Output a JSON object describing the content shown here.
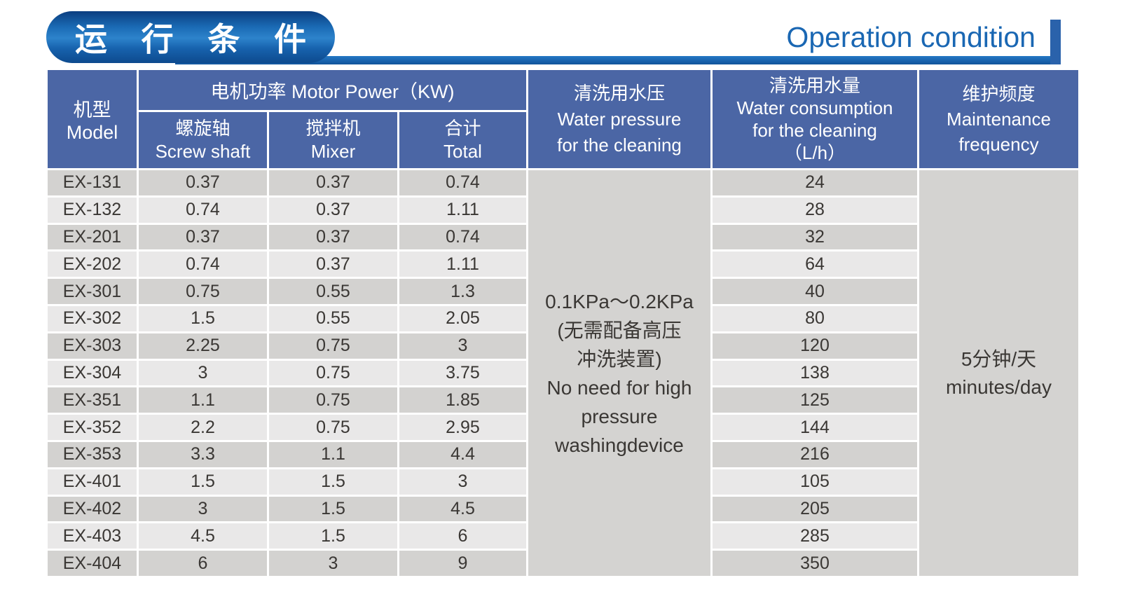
{
  "banner": {
    "title_zh": "运 行 条 件",
    "title_en": "Operation condition"
  },
  "colors": {
    "header_bg": "#4b66a5",
    "row_dark": "#d3d2d0",
    "row_light": "#e9e8e8",
    "merged_gray": "#d4d3d1",
    "accent_blue": "#1a67b3",
    "badge_blue_light": "#2d83cb",
    "badge_blue_dark": "#0b3e80",
    "body_text": "#3a3734"
  },
  "table": {
    "headers": {
      "model": "机型\nModel",
      "motor_power": "电机功率  Motor Power（KW)",
      "screw_shaft": "螺旋轴\nScrew shaft",
      "mixer": "搅拌机\nMixer",
      "total": "合计\nTotal",
      "water_pressure": "清洗用水压\nWater pressure\nfor the cleaning",
      "water_consumption": "清洗用水量\nWater consumption\nfor the cleaning\n（L/h）",
      "maintenance": "维护频度\nMaintenance\nfrequency"
    },
    "water_pressure_note": "0.1KPa～0.2KPa\n(无需配备高压\n冲洗装置)\nNo need for high\npressure\nwashingdevice",
    "maintenance_note": "5分钟/天\nminutes/day",
    "rows": [
      {
        "model": "EX-131",
        "screw": "0.37",
        "mixer": "0.37",
        "total": "0.74",
        "consumption": "24"
      },
      {
        "model": "EX-132",
        "screw": "0.74",
        "mixer": "0.37",
        "total": "1.11",
        "consumption": "28"
      },
      {
        "model": "EX-201",
        "screw": "0.37",
        "mixer": "0.37",
        "total": "0.74",
        "consumption": "32"
      },
      {
        "model": "EX-202",
        "screw": "0.74",
        "mixer": "0.37",
        "total": "1.11",
        "consumption": "64"
      },
      {
        "model": "EX-301",
        "screw": "0.75",
        "mixer": "0.55",
        "total": "1.3",
        "consumption": "40"
      },
      {
        "model": "EX-302",
        "screw": "1.5",
        "mixer": "0.55",
        "total": "2.05",
        "consumption": "80"
      },
      {
        "model": "EX-303",
        "screw": "2.25",
        "mixer": "0.75",
        "total": "3",
        "consumption": "120"
      },
      {
        "model": "EX-304",
        "screw": "3",
        "mixer": "0.75",
        "total": "3.75",
        "consumption": "138"
      },
      {
        "model": "EX-351",
        "screw": "1.1",
        "mixer": "0.75",
        "total": "1.85",
        "consumption": "125"
      },
      {
        "model": "EX-352",
        "screw": "2.2",
        "mixer": "0.75",
        "total": "2.95",
        "consumption": "144"
      },
      {
        "model": "EX-353",
        "screw": "3.3",
        "mixer": "1.1",
        "total": "4.4",
        "consumption": "216"
      },
      {
        "model": "EX-401",
        "screw": "1.5",
        "mixer": "1.5",
        "total": "3",
        "consumption": "105"
      },
      {
        "model": "EX-402",
        "screw": "3",
        "mixer": "1.5",
        "total": "4.5",
        "consumption": "205"
      },
      {
        "model": "EX-403",
        "screw": "4.5",
        "mixer": "1.5",
        "total": "6",
        "consumption": "285"
      },
      {
        "model": "EX-404",
        "screw": "6",
        "mixer": "3",
        "total": "9",
        "consumption": "350"
      }
    ]
  }
}
